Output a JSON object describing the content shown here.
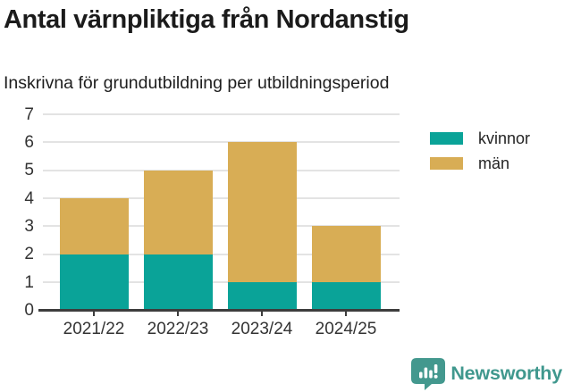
{
  "title": "Antal värnpliktiga från Nordanstig",
  "subtitle": "Inskrivna för grundutbildning per utbildningsperiod",
  "colors": {
    "kvinnor": "#0aa398",
    "man": "#d8ad55",
    "brand_teal": "#40988e",
    "axis": "#3d3d3d",
    "grid": "#e3e3e3",
    "title_text": "#1b1b1b",
    "tick_text": "#333333"
  },
  "chart_data": {
    "type": "bar",
    "stacked": true,
    "title": "Antal värnpliktiga från Nordanstig",
    "subtitle": "Inskrivna för grundutbildning per utbildningsperiod",
    "categories": [
      "2021/22",
      "2022/23",
      "2023/24",
      "2024/25"
    ],
    "series": [
      {
        "name": "kvinnor",
        "color": "#0aa398",
        "values": [
          2,
          2,
          1,
          1
        ]
      },
      {
        "name": "män",
        "color": "#d8ad55",
        "values": [
          2,
          3,
          5,
          2
        ]
      }
    ],
    "totals": [
      4,
      5,
      6,
      3
    ],
    "xlabel": "",
    "ylabel": "",
    "ylim": [
      0,
      7
    ],
    "yticks": [
      0,
      1,
      2,
      3,
      4,
      5,
      6,
      7
    ],
    "grid": true,
    "legend_position": "top-right"
  },
  "legend": {
    "items": [
      {
        "label": "kvinnor",
        "color": "#0aa398"
      },
      {
        "label": "män",
        "color": "#d8ad55"
      }
    ]
  },
  "footer": {
    "brand": "Newsworthy",
    "logo_icon": "bar-chart-speech-bubble"
  }
}
